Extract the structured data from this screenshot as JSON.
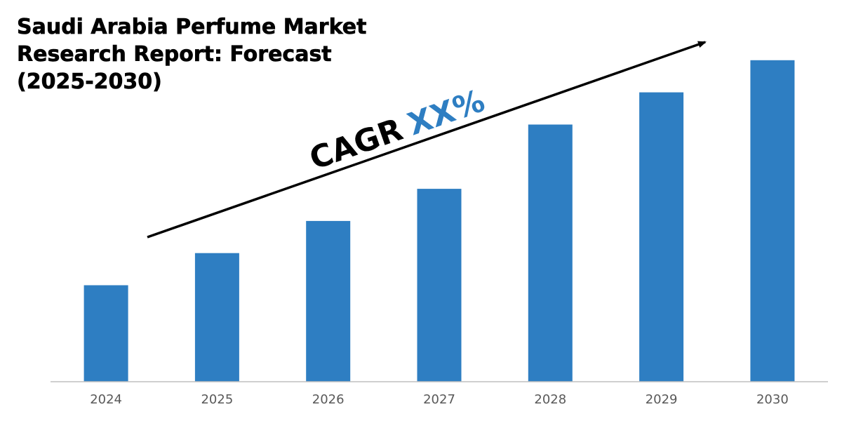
{
  "title_lines": [
    "Saudi Arabia Perfume Market",
    "Research Report: Forecast",
    "(2025-2030)"
  ],
  "annotation": {
    "prefix": "CAGR",
    "value": "XX%"
  },
  "colors": {
    "bar": "#2E7EC2",
    "annotation_value": "#2E7EC2",
    "axis": "#BFBFBF",
    "text": "#000000",
    "tick": "#595959"
  },
  "chart_data": {
    "type": "bar",
    "title": "Saudi Arabia Perfume Market Research Report: Forecast (2025-2030)",
    "categories": [
      "2024",
      "2025",
      "2026",
      "2027",
      "2028",
      "2029",
      "2030"
    ],
    "values": [
      30,
      40,
      50,
      60,
      80,
      90,
      100
    ],
    "xlabel": "",
    "ylabel": "",
    "ylim": [
      0,
      110
    ],
    "grid": false,
    "legend": "none",
    "y_axis_labels_shown": false
  }
}
